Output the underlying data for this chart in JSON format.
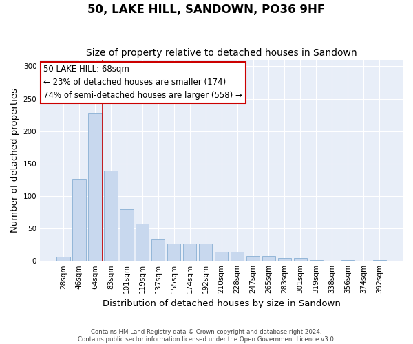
{
  "title": "50, LAKE HILL, SANDOWN, PO36 9HF",
  "subtitle": "Size of property relative to detached houses in Sandown",
  "xlabel": "Distribution of detached houses by size in Sandown",
  "ylabel": "Number of detached properties",
  "footer_line1": "Contains HM Land Registry data © Crown copyright and database right 2024.",
  "footer_line2": "Contains public sector information licensed under the Open Government Licence v3.0.",
  "bar_labels": [
    "28sqm",
    "46sqm",
    "64sqm",
    "83sqm",
    "101sqm",
    "119sqm",
    "137sqm",
    "155sqm",
    "174sqm",
    "192sqm",
    "210sqm",
    "228sqm",
    "247sqm",
    "265sqm",
    "283sqm",
    "301sqm",
    "319sqm",
    "338sqm",
    "356sqm",
    "374sqm",
    "392sqm"
  ],
  "bar_values": [
    7,
    126,
    228,
    139,
    80,
    58,
    33,
    27,
    27,
    27,
    14,
    14,
    8,
    8,
    4,
    4,
    1,
    0,
    1,
    0,
    1
  ],
  "bar_color": "#c8d8ee",
  "bar_edge_color": "#89afd4",
  "red_line_x": 2.5,
  "annotation_line1": "50 LAKE HILL: 68sqm",
  "annotation_line2": "← 23% of detached houses are smaller (174)",
  "annotation_line3": "74% of semi-detached houses are larger (558) →",
  "annotation_box_color": "#ffffff",
  "annotation_box_edge": "#cc0000",
  "ylim": [
    0,
    310
  ],
  "yticks": [
    0,
    50,
    100,
    150,
    200,
    250,
    300
  ],
  "fig_bg_color": "#ffffff",
  "plot_bg_color": "#e8eef8",
  "grid_color": "#ffffff",
  "red_line_color": "#cc0000",
  "title_fontsize": 12,
  "subtitle_fontsize": 10,
  "axis_label_fontsize": 9.5,
  "tick_fontsize": 7.5,
  "annotation_fontsize": 8.5
}
